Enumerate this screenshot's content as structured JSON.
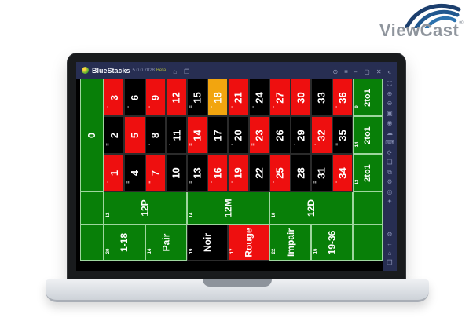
{
  "logo": {
    "brand": "ViewCast",
    "registered": "®"
  },
  "window": {
    "title": "BlueStacks",
    "version": "5.0.0.7028",
    "beta": "Beta",
    "left_icons": [
      {
        "name": "home-icon",
        "glyph": "⌂"
      },
      {
        "name": "install-apk-icon",
        "glyph": "❒"
      }
    ],
    "right_icons": [
      {
        "name": "boot-options-icon",
        "glyph": "⊙"
      },
      {
        "name": "menu-icon",
        "glyph": "≡"
      },
      {
        "name": "minimize-icon",
        "glyph": "–"
      },
      {
        "name": "maximize-icon",
        "glyph": "▢"
      },
      {
        "name": "close-icon",
        "glyph": "✕"
      },
      {
        "name": "collapse-toolbar-icon",
        "glyph": "«"
      }
    ]
  },
  "toolbar": {
    "icons": [
      {
        "name": "fullscreen-icon",
        "glyph": "⛶"
      },
      {
        "name": "volume-up-icon",
        "glyph": "⊕"
      },
      {
        "name": "volume-down-icon",
        "glyph": "⊖"
      },
      {
        "name": "screenshot-icon",
        "glyph": "▣"
      },
      {
        "name": "record-icon",
        "glyph": "◉"
      },
      {
        "name": "cloud-icon",
        "glyph": "☁"
      },
      {
        "name": "keyboard-icon",
        "glyph": "⌨"
      },
      {
        "name": "rotate-icon",
        "glyph": "⟳"
      },
      {
        "name": "multi-instance-icon",
        "glyph": "❏"
      },
      {
        "name": "copy-icon",
        "glyph": "⧉"
      },
      {
        "name": "settings-icon",
        "glyph": "⚙"
      },
      {
        "name": "macro-icon",
        "glyph": "◎"
      },
      {
        "name": "more-icon",
        "glyph": "✦"
      }
    ],
    "nav_icons": [
      {
        "name": "settings-gear-icon",
        "glyph": "⚙"
      },
      {
        "name": "back-icon",
        "glyph": "←"
      },
      {
        "name": "home-nav-icon",
        "glyph": "⌂"
      },
      {
        "name": "recents-icon",
        "glyph": "❐"
      }
    ]
  },
  "table": {
    "colors": {
      "green": "#087f08",
      "red": "#ee0f0f",
      "black": "#000000",
      "highlight": "#f2a50f"
    },
    "zero": {
      "label": "0"
    },
    "number_rows": [
      {
        "cells": [
          {
            "label": "3",
            "color": "red",
            "tick": "-"
          },
          {
            "label": "6",
            "color": "black",
            "tick": "-"
          },
          {
            "label": "9",
            "color": "red",
            "tick": "-"
          },
          {
            "label": "12",
            "color": "red",
            "tick": ""
          },
          {
            "label": "15",
            "color": "black",
            "tick": "="
          },
          {
            "label": "18",
            "color": "highlight",
            "tick": "-"
          },
          {
            "label": "21",
            "color": "red",
            "tick": "-"
          },
          {
            "label": "24",
            "color": "black",
            "tick": "-"
          },
          {
            "label": "27",
            "color": "red",
            "tick": "-"
          },
          {
            "label": "30",
            "color": "red",
            "tick": ""
          },
          {
            "label": "33",
            "color": "black",
            "tick": ""
          },
          {
            "label": "36",
            "color": "red",
            "tick": "-"
          }
        ]
      },
      {
        "cells": [
          {
            "label": "2",
            "color": "black",
            "tick": "="
          },
          {
            "label": "5",
            "color": "red",
            "tick": ""
          },
          {
            "label": "8",
            "color": "black",
            "tick": "-"
          },
          {
            "label": "11",
            "color": "black",
            "tick": "-"
          },
          {
            "label": "14",
            "color": "red",
            "tick": "="
          },
          {
            "label": "17",
            "color": "black",
            "tick": ""
          },
          {
            "label": "20",
            "color": "black",
            "tick": "-"
          },
          {
            "label": "23",
            "color": "red",
            "tick": "="
          },
          {
            "label": "26",
            "color": "black",
            "tick": ""
          },
          {
            "label": "29",
            "color": "black",
            "tick": "-"
          },
          {
            "label": "32",
            "color": "red",
            "tick": "-"
          },
          {
            "label": "35",
            "color": "black",
            "tick": "≡"
          }
        ]
      },
      {
        "cells": [
          {
            "label": "1",
            "color": "red",
            "tick": "-"
          },
          {
            "label": "4",
            "color": "black",
            "tick": "="
          },
          {
            "label": "7",
            "color": "red",
            "tick": "="
          },
          {
            "label": "10",
            "color": "black",
            "tick": ""
          },
          {
            "label": "13",
            "color": "black",
            "tick": "="
          },
          {
            "label": "16",
            "color": "red",
            "tick": "-"
          },
          {
            "label": "19",
            "color": "red",
            "tick": "-"
          },
          {
            "label": "22",
            "color": "black",
            "tick": ""
          },
          {
            "label": "25",
            "color": "red",
            "tick": "-"
          },
          {
            "label": "28",
            "color": "black",
            "tick": ""
          },
          {
            "label": "31",
            "color": "black",
            "tick": "="
          },
          {
            "label": "34",
            "color": "red",
            "tick": "-"
          }
        ]
      }
    ],
    "column_bets": [
      {
        "label": "2to1",
        "corner": "9"
      },
      {
        "label": "2to1",
        "corner": "14"
      },
      {
        "label": "2to1",
        "corner": "13"
      }
    ],
    "dozens": [
      {
        "label": "12P",
        "corner": "12"
      },
      {
        "label": "12M",
        "corner": "14"
      },
      {
        "label": "12D",
        "corner": "10"
      }
    ],
    "outside_bets": [
      {
        "label": "1-18",
        "corner": "20",
        "color": "green"
      },
      {
        "label": "Pair",
        "corner": "14",
        "color": "green"
      },
      {
        "label": "Noir",
        "corner": "19",
        "color": "black"
      },
      {
        "label": "Rouge",
        "corner": "17",
        "color": "red"
      },
      {
        "label": "Impair",
        "corner": "22",
        "color": "green"
      },
      {
        "label": "19-36",
        "corner": "16",
        "color": "green"
      }
    ]
  }
}
